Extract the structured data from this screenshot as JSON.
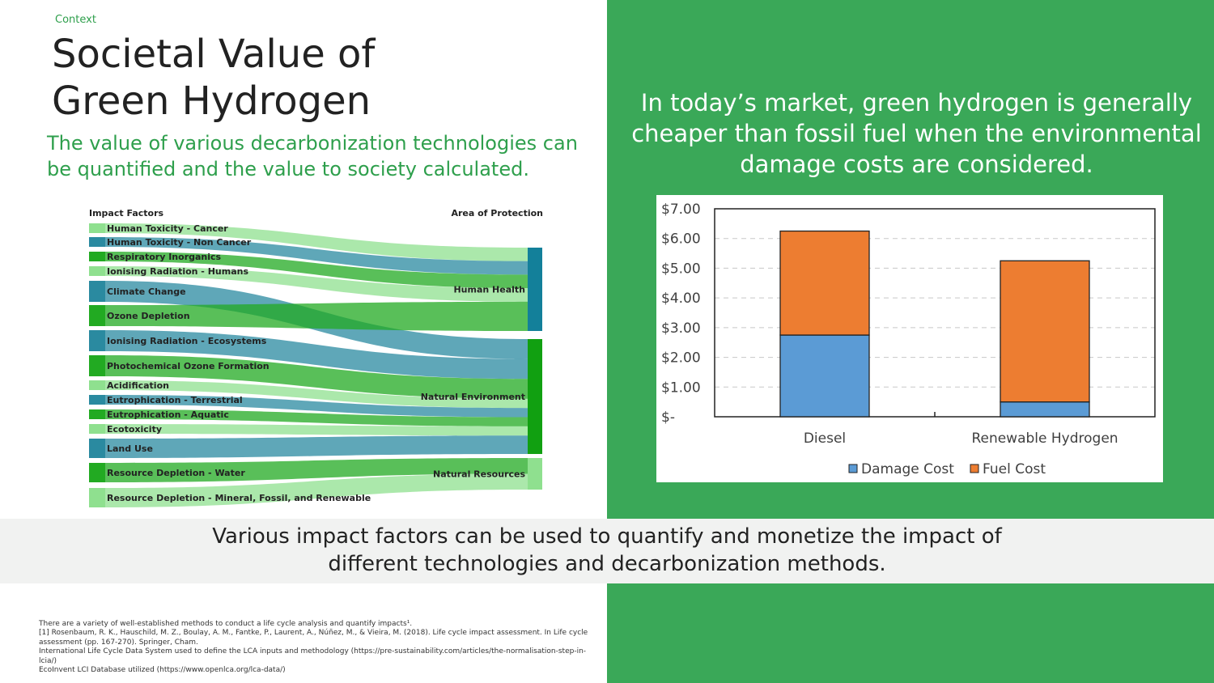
{
  "header": {
    "context": "Context",
    "title_line1": "Societal Value of",
    "title_line2": "Green Hydrogen",
    "subtitle": "The value of various decarbonization technologies can be quantified and the value to society calculated."
  },
  "right_panel": {
    "heading": "In today’s market, green hydrogen is generally cheaper than fossil fuel when the environmental damage costs are considered."
  },
  "band": {
    "text_line1": "Various impact factors can be used to quantify and monetize the impact of",
    "text_line2": "different technologies and decarbonization methods."
  },
  "footnotes": [
    "There are a variety of well-established methods to conduct a life cycle analysis and quantify impacts¹.",
    "[1] Rosenbaum, R. K., Hauschild, M. Z., Boulay, A. M., Fantke, P., Laurent, A., Núñez, M., & Vieira, M. (2018). Life cycle impact assessment. In Life cycle assessment (pp. 167-270). Springer, Cham.",
    "International Life Cycle Data System used to define the LCA inputs and methodology (https://pre-sustainability.com/articles/the-normalisation-step-in-lcia/)",
    "EcoInvent LCI Database utilized (https://www.openlca.org/lca-data/)"
  ],
  "sankey": {
    "left_header": "Impact Factors",
    "right_header": "Area of Protection",
    "factors": [
      {
        "label": "Human Toxicity - Cancer",
        "color": "#8fe08f",
        "target": 0
      },
      {
        "label": "Human Toxicity - Non Cancer",
        "color": "#2a8aa0",
        "target": 0
      },
      {
        "label": "Respiratory Inorganics",
        "color": "#22aa22",
        "target": 0
      },
      {
        "label": "Ionising Radiation - Humans",
        "color": "#8fe08f",
        "target": 0
      },
      {
        "label": "Climate Change",
        "color": "#2a8aa0",
        "target": 1
      },
      {
        "label": "Ozone Depletion",
        "color": "#22aa22",
        "target": 0
      },
      {
        "label": "Ionising Radiation - Ecosystems",
        "color": "#2a8aa0",
        "target": 1
      },
      {
        "label": "Photochemical Ozone Formation",
        "color": "#22aa22",
        "target": 1
      },
      {
        "label": "Acidification",
        "color": "#8fe08f",
        "target": 1
      },
      {
        "label": "Eutrophication - Terrestrial",
        "color": "#2a8aa0",
        "target": 1
      },
      {
        "label": "Eutrophication - Aquatic",
        "color": "#22aa22",
        "target": 1
      },
      {
        "label": "Ecotoxicity",
        "color": "#8fe08f",
        "target": 1
      },
      {
        "label": "Land Use",
        "color": "#2a8aa0",
        "target": 1
      },
      {
        "label": "Resource Depletion - Water",
        "color": "#22aa22",
        "target": 2
      },
      {
        "label": "Resource Depletion - Mineral, Fossil, and Renewable",
        "color": "#8fe08f",
        "target": 2
      }
    ],
    "areas": [
      {
        "label": "Human Health",
        "color": "#13809a"
      },
      {
        "label": "Natural Environment",
        "color": "#11a011"
      },
      {
        "label": "Natural Resources",
        "color": "#8fe08f"
      }
    ]
  },
  "chart_data": {
    "type": "bar",
    "stacked": true,
    "categories": [
      "Diesel",
      "Renewable Hydrogen"
    ],
    "series": [
      {
        "name": "Damage Cost",
        "color": "#5b9bd5",
        "values": [
          2.75,
          0.5
        ]
      },
      {
        "name": "Fuel Cost",
        "color": "#ed7d31",
        "values": [
          3.5,
          4.75
        ]
      }
    ],
    "ylim": [
      0,
      7
    ],
    "yticks": [
      "$-",
      "$1.00",
      "$2.00",
      "$3.00",
      "$4.00",
      "$5.00",
      "$6.00",
      "$7.00"
    ],
    "grid": true,
    "legend": "bottom"
  }
}
